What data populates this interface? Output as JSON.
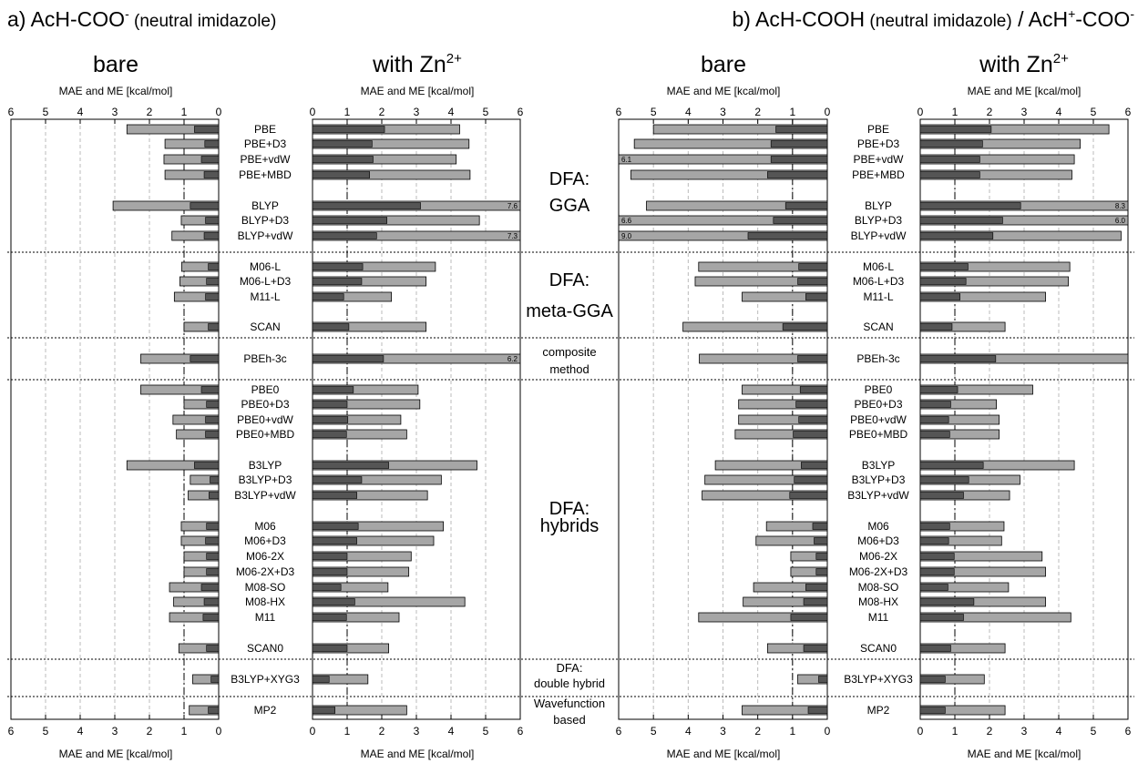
{
  "colors": {
    "mae": "#a6a6a6",
    "me": "#555555",
    "stroke": "#000000",
    "grid": "#bbbbbb"
  },
  "chart_data": {
    "type": "bar",
    "headings": [
      {
        "prefix": "a) AcH-COO",
        "sup": "-",
        "suffix": " (neutral imidazole)",
        "suffix_after_sup": ""
      },
      {
        "prefix": "b) AcH-COOH",
        "sup": "",
        "suffix": " (neutral imidazole) / AcH",
        "suffix_after_sup": ""
      }
    ],
    "heading_b_full": {
      "part1": "b) AcH-COOH",
      "part2": " (neutral imidazole)",
      "part3": " / AcH",
      "sup1": "+",
      "part4": "-COO",
      "sup2": "-"
    },
    "heading_a_full": {
      "part1": "a) AcH-COO",
      "sup1": "-",
      "part2": " (neutral imidazole)"
    },
    "panel_titles": [
      "bare",
      "with Zn",
      "bare",
      "with Zn"
    ],
    "panel_title_sup": "2+",
    "axis_label": "MAE and ME [kcal/mol]",
    "ticks": [
      "0",
      "1",
      "2",
      "3",
      "4",
      "5",
      "6"
    ],
    "xlim": [
      0,
      6
    ],
    "reference_line": 1,
    "methods": [
      "PBE",
      "PBE+D3",
      "PBE+vdW",
      "PBE+MBD",
      "BLYP",
      "BLYP+D3",
      "BLYP+vdW",
      "M06-L",
      "M06-L+D3",
      "M11-L",
      "SCAN",
      "PBEh-3c",
      "PBE0",
      "PBE0+D3",
      "PBE0+vdW",
      "PBE0+MBD",
      "B3LYP",
      "B3LYP+D3",
      "B3LYP+vdW",
      "M06",
      "M06+D3",
      "M06-2X",
      "M06-2X+D3",
      "M08-SO",
      "M08-HX",
      "M11",
      "SCAN0",
      "B3LYP+XYG3",
      "MP2"
    ],
    "groups": [
      {
        "lines": [
          "DFA:",
          "GGA"
        ],
        "methods": 7
      },
      {
        "lines": [
          "DFA:",
          "meta-GGA"
        ],
        "methods": 4
      },
      {
        "lines": [
          "composite",
          "method"
        ],
        "methods": 1
      },
      {
        "lines": [
          "DFA:",
          "hybrids"
        ],
        "methods": 15
      },
      {
        "lines": [
          "DFA:",
          "double hybrid"
        ],
        "methods": 1
      },
      {
        "lines": [
          "Wavefunction",
          "based"
        ],
        "methods": 1
      }
    ],
    "panels": [
      {
        "name": "a) bare",
        "direction": "left",
        "mae": [
          2.65,
          1.55,
          1.58,
          1.55,
          3.05,
          1.08,
          1.35,
          1.07,
          1.12,
          1.28,
          1.0,
          2.25,
          2.25,
          1.0,
          1.32,
          1.22,
          2.65,
          0.82,
          0.88,
          1.08,
          1.08,
          1.0,
          1.0,
          1.42,
          1.3,
          1.42,
          1.15,
          0.75,
          0.85
        ],
        "me": [
          0.7,
          0.4,
          0.5,
          0.42,
          0.82,
          0.38,
          0.42,
          0.3,
          0.35,
          0.38,
          0.3,
          0.82,
          0.5,
          0.35,
          0.38,
          0.38,
          0.7,
          0.25,
          0.28,
          0.35,
          0.38,
          0.35,
          0.35,
          0.5,
          0.42,
          0.45,
          0.35,
          0.22,
          0.3
        ],
        "overflow": [
          null,
          null,
          null,
          null,
          null,
          null,
          null,
          null,
          null,
          null,
          null,
          null,
          null,
          null,
          null,
          null,
          null,
          null,
          null,
          null,
          null,
          null,
          null,
          null,
          null,
          null,
          null,
          null,
          null
        ]
      },
      {
        "name": "a) with Zn2+",
        "direction": "right",
        "mae": [
          4.25,
          4.52,
          4.15,
          4.55,
          7.6,
          4.82,
          7.3,
          3.55,
          3.28,
          2.28,
          3.28,
          6.2,
          3.05,
          3.1,
          2.55,
          2.72,
          4.75,
          3.72,
          3.32,
          3.78,
          3.5,
          2.85,
          2.78,
          2.18,
          4.4,
          2.5,
          2.2,
          1.6,
          2.72
        ],
        "me": [
          2.08,
          1.72,
          1.75,
          1.65,
          3.12,
          2.15,
          1.85,
          1.45,
          1.42,
          0.9,
          1.05,
          2.05,
          1.18,
          1.0,
          1.02,
          0.98,
          2.2,
          1.42,
          1.28,
          1.32,
          1.28,
          1.0,
          1.0,
          0.82,
          1.22,
          0.98,
          1.0,
          0.48,
          0.65
        ],
        "overflow": [
          null,
          null,
          null,
          null,
          "7.6",
          null,
          "7.3",
          null,
          null,
          null,
          null,
          "6.2",
          null,
          null,
          null,
          null,
          null,
          null,
          null,
          null,
          null,
          null,
          null,
          null,
          null,
          null,
          null,
          null,
          null
        ]
      },
      {
        "name": "b) bare",
        "direction": "left",
        "mae": [
          5.0,
          5.55,
          6.1,
          5.65,
          5.2,
          6.6,
          9.0,
          3.7,
          3.8,
          2.45,
          4.15,
          3.68,
          2.45,
          2.55,
          2.55,
          2.65,
          3.22,
          3.52,
          3.6,
          1.75,
          2.05,
          1.05,
          1.05,
          2.12,
          2.42,
          3.7,
          1.72,
          0.85,
          2.45
        ],
        "me": [
          1.48,
          1.62,
          1.62,
          1.72,
          1.2,
          1.55,
          2.28,
          0.82,
          0.85,
          0.62,
          1.28,
          0.85,
          0.78,
          0.9,
          0.82,
          0.98,
          0.75,
          0.95,
          1.08,
          0.42,
          0.38,
          0.32,
          0.32,
          0.62,
          0.68,
          1.05,
          0.68,
          0.25,
          0.55
        ],
        "overflow": [
          null,
          null,
          "6.1",
          null,
          null,
          "6.6",
          "9.0",
          null,
          null,
          null,
          null,
          null,
          null,
          null,
          null,
          null,
          null,
          null,
          null,
          null,
          null,
          null,
          null,
          null,
          null,
          null,
          null,
          null,
          null
        ]
      },
      {
        "name": "b) with Zn2+",
        "direction": "right",
        "mae": [
          5.45,
          4.62,
          4.45,
          4.38,
          8.3,
          6.0,
          5.8,
          4.32,
          4.28,
          3.62,
          2.45,
          6.0,
          3.25,
          2.2,
          2.28,
          2.28,
          4.45,
          2.88,
          2.58,
          2.42,
          2.35,
          3.52,
          3.62,
          2.55,
          3.62,
          4.35,
          2.45,
          1.85,
          2.45
        ],
        "me": [
          2.05,
          1.8,
          1.72,
          1.72,
          2.9,
          2.38,
          2.1,
          1.38,
          1.32,
          1.15,
          0.92,
          2.18,
          1.08,
          0.88,
          0.82,
          0.85,
          1.82,
          1.4,
          1.25,
          0.85,
          0.82,
          0.98,
          0.98,
          0.8,
          1.55,
          1.25,
          0.88,
          0.72,
          0.72
        ],
        "overflow": [
          null,
          null,
          null,
          null,
          "8.3",
          "6.0",
          null,
          null,
          null,
          null,
          null,
          null,
          null,
          null,
          null,
          null,
          null,
          null,
          null,
          null,
          null,
          null,
          null,
          null,
          null,
          null,
          null,
          null,
          null
        ]
      }
    ]
  }
}
